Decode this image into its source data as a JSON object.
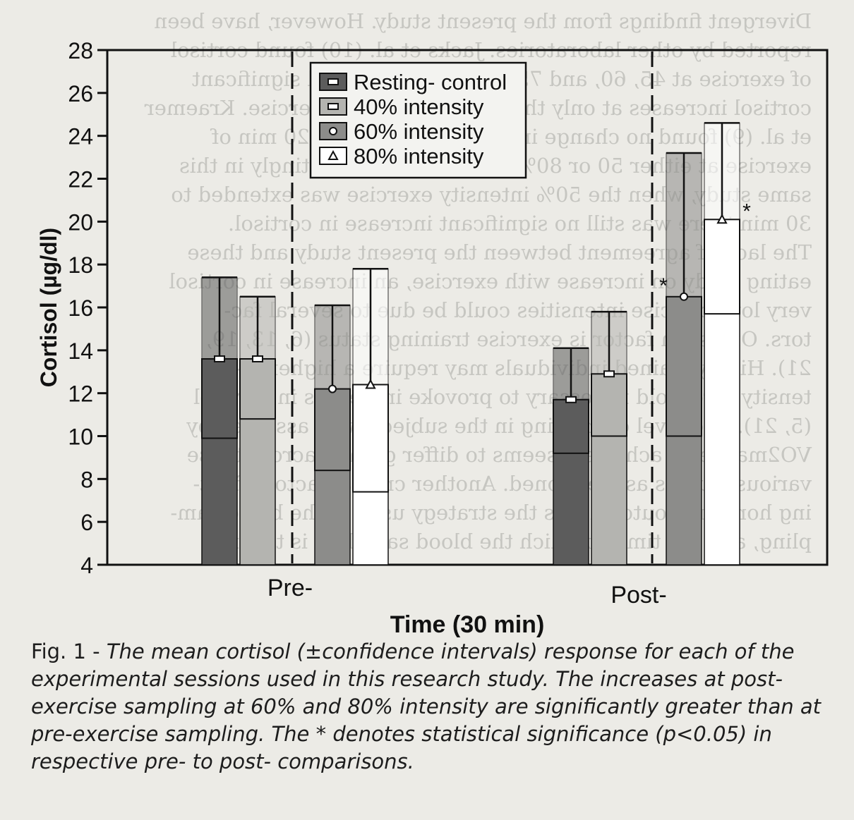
{
  "chart_data": {
    "type": "bar",
    "ylabel": "Cortisol (µg/dl)",
    "xlabel": "Time (30 min)",
    "ylim": [
      4,
      28
    ],
    "yticks": [
      4,
      6,
      8,
      10,
      12,
      14,
      16,
      18,
      20,
      22,
      24,
      26,
      28
    ],
    "groups": [
      "Pre-",
      "Post-"
    ],
    "legend_position": "top-center",
    "series": [
      {
        "name": "Resting- control",
        "marker": "square",
        "color": "#5c5c5c",
        "pre": {
          "mean": 13.6,
          "lower": 9.9,
          "upper": 17.4
        },
        "post": {
          "mean": 11.7,
          "lower": 9.2,
          "upper": 14.1
        }
      },
      {
        "name": "40% intensity",
        "marker": "square",
        "color": "#b4b4b0",
        "pre": {
          "mean": 13.6,
          "lower": 10.8,
          "upper": 16.5
        },
        "post": {
          "mean": 12.9,
          "lower": 10.0,
          "upper": 15.8
        }
      },
      {
        "name": "60% intensity",
        "marker": "circle",
        "color": "#8c8c8a",
        "pre": {
          "mean": 12.2,
          "lower": 8.4,
          "upper": 16.1
        },
        "post": {
          "mean": 16.5,
          "lower": 10.0,
          "upper": 23.2
        }
      },
      {
        "name": "80% intensity",
        "marker": "triangle",
        "color": "#ffffff",
        "pre": {
          "mean": 12.4,
          "lower": 7.4,
          "upper": 17.8
        },
        "post": {
          "mean": 20.1,
          "lower": 15.7,
          "upper": 24.6
        }
      }
    ],
    "significance_marker": "*",
    "significant": [
      {
        "series": 2,
        "group": "post"
      },
      {
        "series": 3,
        "group": "post"
      }
    ]
  },
  "caption": {
    "label": "Fig. 1 - ",
    "text": "The mean cortisol (±confidence intervals) response for each of the experimental sessions used in this research study. The increases at post-exercise sampling at 60% and 80% intensity are significantly greater than at pre-exercise sampling. The * denotes statistical significance (p<0.05) in respective pre- to post- comparisons."
  },
  "background_text": [
    "Divergent findings from the present study. However, have been",
    "reported by other laboratories. Jacks et al. (10) found cortisol",
    "of exercise at 45, 60, and 75% VO2max revealed significant",
    "cortisol increases at only the higher intensity exercise. Kraemer",
    "et al. (9) found no change in cortisol levels with 20 min of",
    "exercise at either 50 or 80% of VO2max. Interestingly in this",
    "same study, when the 50% intensity exercise was extended to",
    "30 min there was still no significant increase in cortisol.",
    "The lack of agreement between the present study and these",
    "eating study on increase with exercise, an increase in cortisol",
    "very low exercise intensities could be due to several fac-",
    "tors. One such factor is exercise training status (6, 13, 19,",
    "21). Highly trained individuals may require a higher in-",
    "tensity threshold necessary to provoke increases in cortisol",
    "(5, 21). The level of training in the subjects was assessed by",
    "VO2max level achieved, seems to differ greatly across these",
    "various studies as mentioned. Another critical factor affect-",
    "ing hormonal outcomes is the strategy used in the blood sam-",
    "pling, and the time at which the blood sampling is taken..."
  ]
}
